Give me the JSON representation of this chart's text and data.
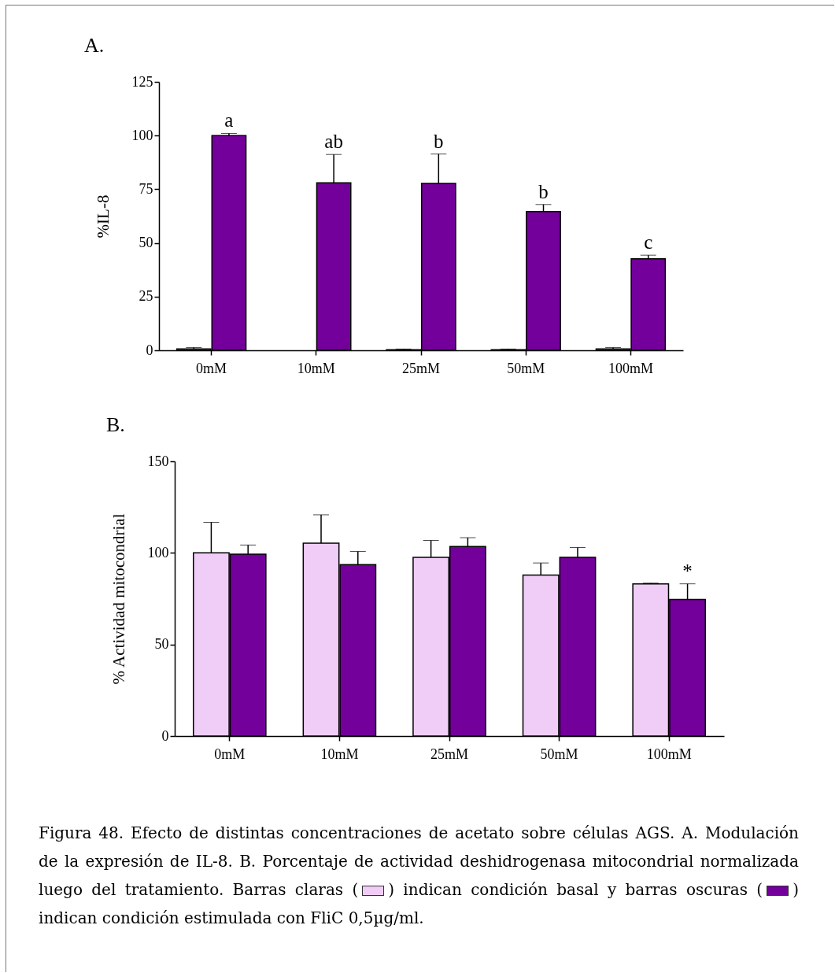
{
  "chart_data": [
    {
      "type": "bar",
      "title": "A.",
      "ylabel": "%IL-8",
      "categories": [
        "0mM",
        "10mM",
        "25mM",
        "50mM",
        "100mM"
      ],
      "series": [
        {
          "color": "#f0cdf6",
          "values": [
            0.6,
            null,
            0.3,
            0.3,
            0.6
          ],
          "errors": [
            0.7,
            null,
            0.3,
            0.3,
            0.7
          ]
        },
        {
          "color": "#73009a",
          "values": [
            100,
            78,
            77.7,
            64.6,
            42.6
          ],
          "errors": [
            1,
            13.2,
            13.7,
            3.3,
            1.7
          ]
        }
      ],
      "ylim": [
        0,
        125
      ],
      "yticks": [
        0,
        25,
        50,
        75,
        100,
        125
      ],
      "annotations": [
        {
          "text": "a",
          "x": "0mM",
          "y": 100
        },
        {
          "text": "ab",
          "x": "10mM",
          "y": 78
        },
        {
          "text": "b",
          "x": "25mM",
          "y": 77.7
        },
        {
          "text": "b",
          "x": "50mM",
          "y": 64.6
        },
        {
          "text": "c",
          "x": "100mM",
          "y": 42.6
        }
      ]
    },
    {
      "type": "bar",
      "title": "B.",
      "ylabel": "% Actividad mitocondrial",
      "categories": [
        "0mM",
        "10mM",
        "25mM",
        "50mM",
        "100mM"
      ],
      "series": [
        {
          "color": "#f0cdf6",
          "values": [
            100,
            105.3,
            97.6,
            87.9,
            83.1
          ],
          "errors": [
            16.7,
            15.5,
            9.2,
            6.6,
            0.4
          ]
        },
        {
          "color": "#73009a",
          "values": [
            99.3,
            93.6,
            103.5,
            97.6,
            74.6
          ],
          "errors": [
            5,
            7.2,
            4.8,
            5.3,
            8.5
          ]
        }
      ],
      "ylim": [
        0,
        150
      ],
      "yticks": [
        0,
        50,
        100,
        150
      ],
      "annotations": [
        {
          "text": "*",
          "x": "100mM",
          "y": 74.6
        },
        "Figura 48. Efecto de distintas concentraciones de acetato sobre células AGS. A. Modulación de la expresión de IL-8. B. Porcentaje de actividad deshidrogenasa mitocondrial normalizada luego del tratamiento. Barras claras (",
        ") indican condición basal y barras oscuras (",
        ") indican condición estimulada con FliC 0,5µg/ml."
      ]
    }
  ]
}
